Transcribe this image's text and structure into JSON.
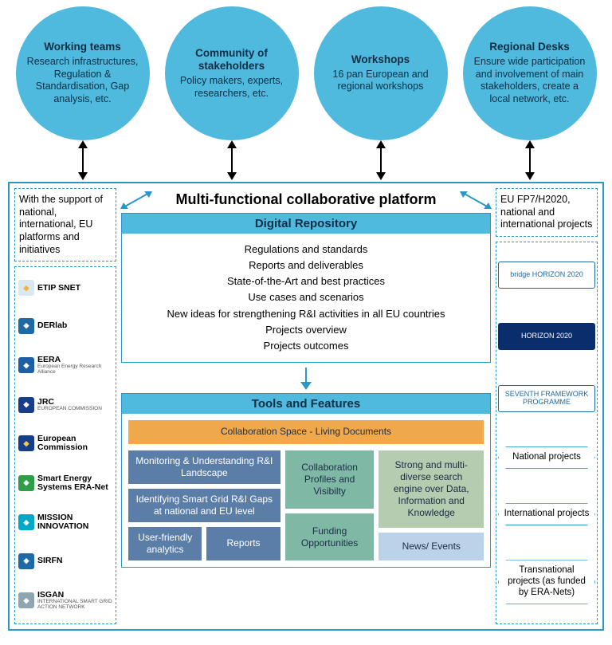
{
  "colors": {
    "circle_fill": "#4fb9de",
    "circle_text": "#0a2e45",
    "main_border": "#2a98c7",
    "dashed_border": "#2a98c7",
    "section_border": "#2a98c7",
    "header_bg": "#4fb9de",
    "header_text": "#0a2e45",
    "tile_orange": "#f0a94a",
    "tile_blue": "#5b7ea9",
    "tile_teal": "#7fb9a6",
    "tile_sage": "#b5ccb0",
    "tile_lightblue": "#bcd2e8",
    "tile_text": "#1b2d45",
    "arrow": "#000000",
    "arrow_blue": "#2a98c7"
  },
  "circles": [
    {
      "title": "Working teams",
      "body": "Research infrastruc­tures, Regulation & Standardisation, Gap analysis, etc."
    },
    {
      "title": "Community of stakeholders",
      "body": "Policy makers, experts, researchers, etc."
    },
    {
      "title": "Workshops",
      "body": "16 pan European and regional workshops"
    },
    {
      "title": "Regional Desks",
      "body": "Ensure wide participa­tion and involvement of main stakeholders, create a local network, etc."
    }
  ],
  "left": {
    "support_text": "With the support of national, international, EU platforms and initiatives",
    "logos": [
      {
        "name": "ETIP SNET",
        "mark_bg": "#d9e9ef",
        "mark_fg": "#f5b03a"
      },
      {
        "name": "DERlab",
        "mark_bg": "#1d6aa5",
        "mark_fg": "#ffffff"
      },
      {
        "name": "EERA",
        "mark_bg": "#1c5fa6",
        "mark_fg": "#ffffff",
        "sub": "European Energy Research Alliance"
      },
      {
        "name": "JRC",
        "mark_bg": "#183d8a",
        "mark_fg": "#ffffff",
        "sub": "EUROPEAN COMMISSION"
      },
      {
        "name": "European Commission",
        "mark_bg": "#183d8a",
        "mark_fg": "#f7c948"
      },
      {
        "name": "Smart Energy Systems ERA-Net",
        "mark_bg": "#2e9e49",
        "mark_fg": "#ffffff"
      },
      {
        "name": "MISSION INNOVATION",
        "mark_bg": "#00a7c7",
        "mark_fg": "#ffffff"
      },
      {
        "name": "SIRFN",
        "mark_bg": "#1c6aa6",
        "mark_fg": "#ffffff"
      },
      {
        "name": "ISGAN",
        "mark_bg": "#8fa6b2",
        "mark_fg": "#ffffff",
        "sub": "INTERNATIONAL SMART GRID ACTION NETWORK"
      }
    ]
  },
  "right": {
    "projects_text": "EU FP7/H2020, national and international projects",
    "proj_logos": [
      {
        "label": "bridge HORIZON 2020",
        "bg": "#ffffff",
        "fg": "#1c6aa6",
        "border": "#1c6aa6"
      },
      {
        "label": "HORIZON 2020",
        "bg": "#0a2e6b",
        "fg": "#ffffff"
      },
      {
        "label": "SEVENTH FRAMEWORK PROGRAMME",
        "bg": "#ffffff",
        "fg": "#1c6aa6",
        "border": "#1c6aa6"
      }
    ],
    "hex": [
      "National projects",
      "International projects",
      "Transnational projects (as funded by ERA-Nets)"
    ]
  },
  "center": {
    "platform_title": "Multi-functional collaborative platform",
    "repo": {
      "header": "Digital Repository",
      "items": [
        "Regulations and standards",
        "Reports and deliverables",
        "State-of-the-Art and best practices",
        "Use cases and scenarios",
        "New ideas for strengthening R&I activities in all EU countries",
        "Projects overview",
        "Projects outcomes"
      ]
    },
    "tools": {
      "header": "Tools and Features",
      "collab": "Collaboration Space - Living Documents",
      "left_tiles": [
        "Monitoring & Understanding R&I Landscape",
        "Identifying Smart Grid R&I Gaps at national and EU level"
      ],
      "left_split": [
        "User-friendly analytics",
        "Reports"
      ],
      "mid_tiles": [
        "Collaboration Profiles and Visibilty",
        "Funding Opportunities"
      ],
      "right_tiles": [
        "Strong and multi-diverse search engine over Data, Information and Knowledge",
        "News/ Events"
      ]
    }
  }
}
